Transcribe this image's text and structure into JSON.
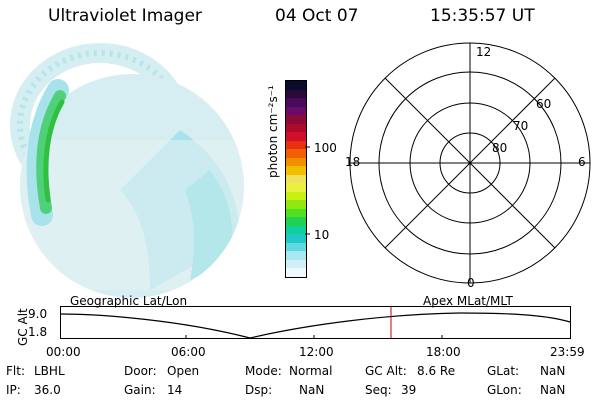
{
  "header": {
    "instrument": "Ultraviolet Imager",
    "date": "04 Oct 07",
    "time": "15:35:57 UT"
  },
  "colorbar": {
    "label": "photon cm⁻²s⁻¹",
    "ticks": [
      "100",
      "10"
    ],
    "colors": [
      "#0b0b2e",
      "#2a0a3a",
      "#4a0a5a",
      "#6a0a6a",
      "#8a0a3a",
      "#b00a2a",
      "#d0102a",
      "#e83010",
      "#f06000",
      "#f09000",
      "#f0c000",
      "#f0e060",
      "#e8f040",
      "#c8f010",
      "#90e810",
      "#50e020",
      "#20d050",
      "#10d0a0",
      "#20c8c8",
      "#60d8e0",
      "#a8e8f0",
      "#d0f0f8",
      "#f0f8ff"
    ]
  },
  "polar": {
    "mlt_labels": {
      "top": "12",
      "left": "18",
      "right": "6",
      "bottom": "0"
    },
    "lat_labels": [
      "60",
      "70",
      "80"
    ]
  },
  "timeline": {
    "left_label": "Geographic Lat/Lon",
    "right_label": "Apex MLat/MLT",
    "y_axis_title": "GC Alt",
    "y_ticks": [
      "9.0",
      "1.8"
    ],
    "x_ticks": [
      "00:00",
      "06:00",
      "12:00",
      "18:00",
      "23:59"
    ]
  },
  "info": {
    "flt_label": "Flt:",
    "flt_value": "LBHL",
    "ip_label": "IP:",
    "ip_value": "36.0",
    "door_label": "Door:",
    "door_value": "Open",
    "gain_label": "Gain:",
    "gain_value": "14",
    "mode_label": "Mode:",
    "mode_value": "Normal",
    "dsp_label": "Dsp:",
    "dsp_value": "NaN",
    "gcalt_label": "GC Alt:",
    "gcalt_value": "8.6 Re",
    "seq_label": "Seq:",
    "seq_value": "39",
    "glat_label": "GLat:",
    "glat_value": "NaN",
    "glon_label": "GLon:",
    "glon_value": "NaN"
  }
}
